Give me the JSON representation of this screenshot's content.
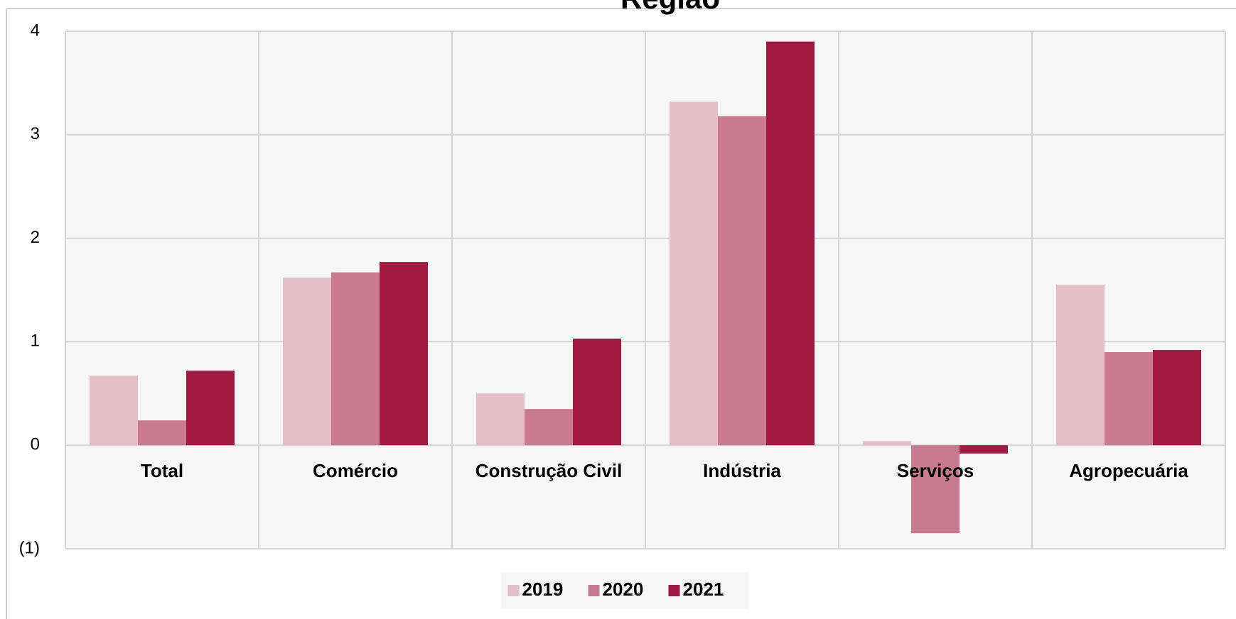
{
  "chart_data": {
    "type": "bar",
    "title": "Região",
    "categories": [
      "Total",
      "Comércio",
      "Construção Civil",
      "Indústria",
      "Serviços",
      "Agropecuária"
    ],
    "series": [
      {
        "name": "2019",
        "color": "#e4bfca",
        "values": [
          0.67,
          1.62,
          0.5,
          3.32,
          0.04,
          1.55
        ]
      },
      {
        "name": "2020",
        "color": "#c77a90",
        "values": [
          0.24,
          1.67,
          0.35,
          3.18,
          -0.85,
          0.9
        ]
      },
      {
        "name": "2021",
        "color": "#a01a42",
        "values": [
          0.72,
          1.77,
          1.03,
          3.9,
          -0.08,
          0.92
        ]
      }
    ],
    "ylim": [
      -1,
      4
    ],
    "yticks": [
      {
        "value": -1,
        "label": "(1)"
      },
      0,
      1,
      2,
      3,
      4
    ],
    "grid": true,
    "legend": "bottom"
  }
}
